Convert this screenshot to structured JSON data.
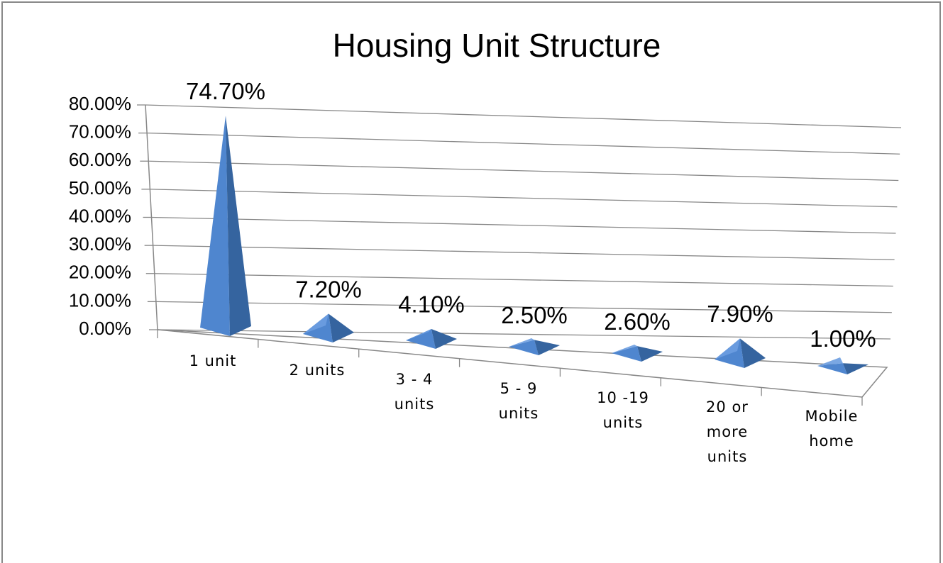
{
  "chart_data": {
    "type": "pyramid3d",
    "title": "Housing Unit Structure",
    "categories": [
      "1 unit",
      "2 units",
      "3 - 4 units",
      "5 - 9 units",
      "10 -19 units",
      "20 or more units",
      "Mobile home"
    ],
    "values": [
      74.7,
      7.2,
      4.1,
      2.5,
      2.6,
      7.9,
      1.0
    ],
    "value_labels": [
      "74.70%",
      "7.20%",
      "4.10%",
      "2.50%",
      "2.60%",
      "7.90%",
      "1.00%"
    ],
    "color": "#4f86cf",
    "ylim": [
      0,
      80
    ],
    "yticks": [
      {
        "value": 0,
        "label": "0.00%"
      },
      {
        "value": 10,
        "label": "10.00%"
      },
      {
        "value": 20,
        "label": "20.00%"
      },
      {
        "value": 30,
        "label": "30.00%"
      },
      {
        "value": 40,
        "label": "40.00%"
      },
      {
        "value": 50,
        "label": "50.00%"
      },
      {
        "value": 60,
        "label": "60.00%"
      },
      {
        "value": 70,
        "label": "70.00%"
      },
      {
        "value": 80,
        "label": "80.00%"
      }
    ],
    "grid": true
  }
}
